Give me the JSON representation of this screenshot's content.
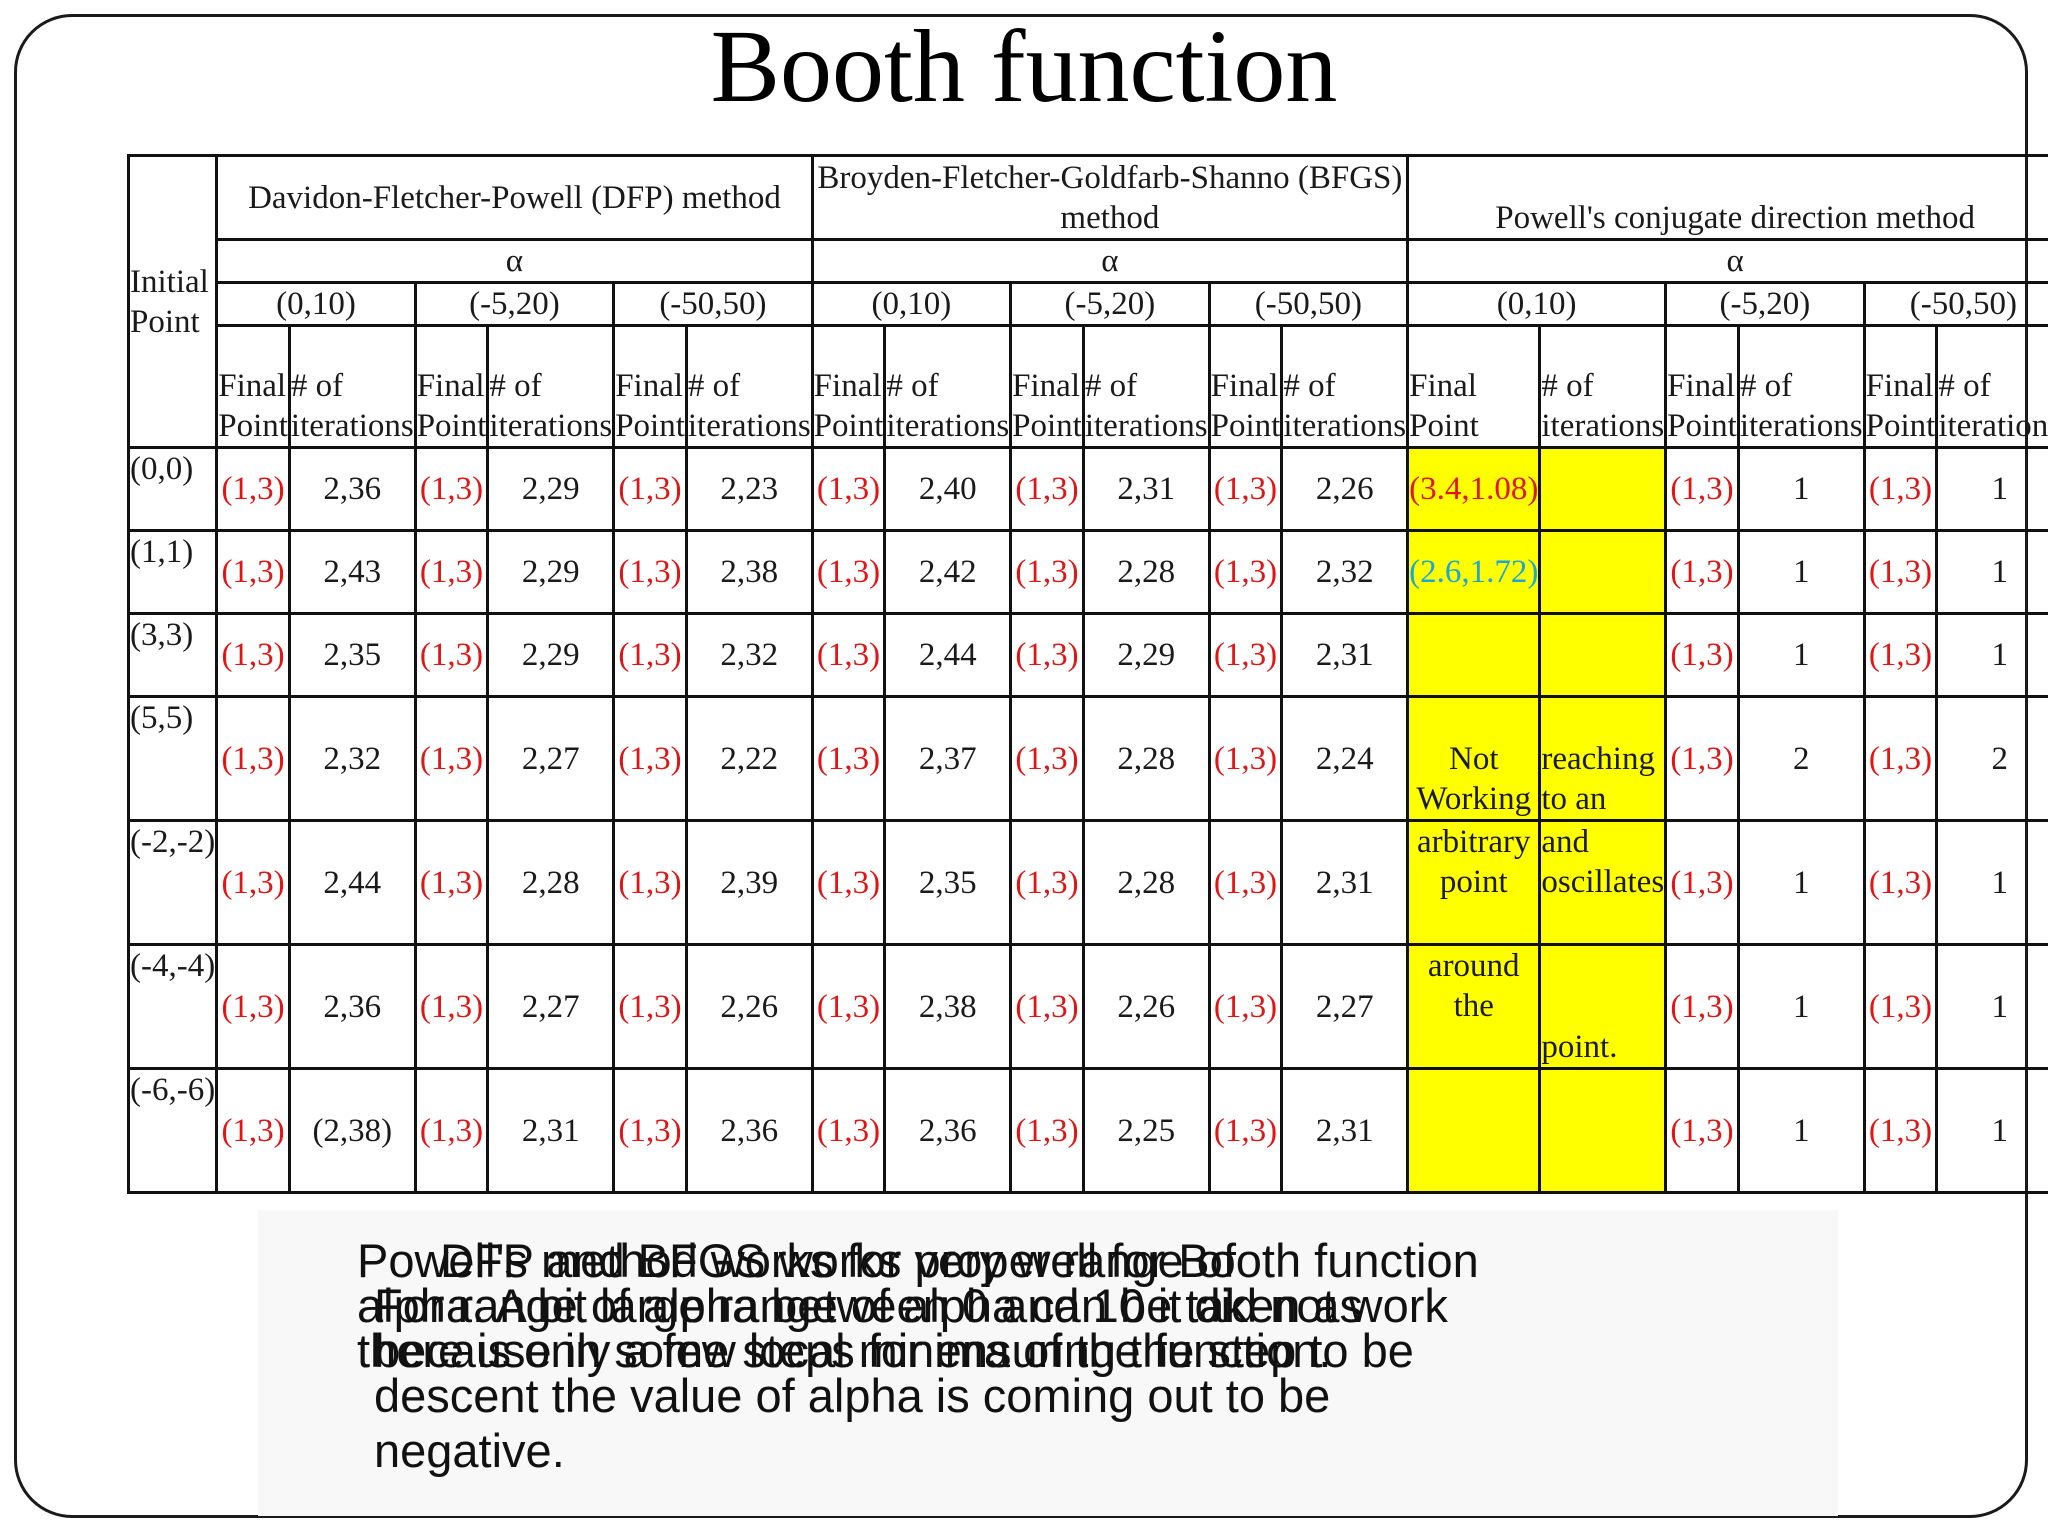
{
  "title": "Booth function",
  "table": {
    "initial_point_header": "Initial Point",
    "methods": [
      "Davidon-Fletcher-Powell (DFP) method",
      "Broyden-Fletcher-Goldfarb-Shanno (BFGS) method",
      "Powell's conjugate direction method"
    ],
    "alpha_label": "α",
    "alpha_ranges": [
      "(0,10)",
      "(-5,20)",
      "(-50,50)"
    ],
    "col_final_point": "Final Point",
    "col_iterations": "# of iterations",
    "rows": [
      {
        "point": "(0,0)",
        "cells": [
          "(1,3)",
          "2,36",
          "(1,3)",
          "2,29",
          "(1,3)",
          "2,23",
          "(1,3)",
          "2,40",
          "(1,3)",
          "2,31",
          "(1,3)",
          "2,26",
          "(3.4,1.08)",
          "",
          "(1,3)",
          "1",
          "(1,3)",
          "1"
        ]
      },
      {
        "point": "(1,1)",
        "cells": [
          "(1,3)",
          "2,43",
          "(1,3)",
          "2,29",
          "(1,3)",
          "2,38",
          "(1,3)",
          "2,42",
          "(1,3)",
          "2,28",
          "(1,3)",
          "2,32",
          "(2.6,1.72)",
          "",
          "(1,3)",
          "1",
          "(1,3)",
          "1"
        ]
      },
      {
        "point": "(3,3)",
        "cells": [
          "(1,3)",
          "2,35",
          "(1,3)",
          "2,29",
          "(1,3)",
          "2,32",
          "(1,3)",
          "2,44",
          "(1,3)",
          "2,29",
          "(1,3)",
          "2,31",
          "",
          "",
          "(1,3)",
          "1",
          "(1,3)",
          "1"
        ]
      },
      {
        "point": "(5,5)",
        "cells": [
          "(1,3)",
          "2,32",
          "(1,3)",
          "2,27",
          "(1,3)",
          "2,22",
          "(1,3)",
          "2,37",
          "(1,3)",
          "2,28",
          "(1,3)",
          "2,24",
          "Not Working",
          "reaching to an",
          "(1,3)",
          "2",
          "(1,3)",
          "2"
        ]
      },
      {
        "point": "(-2,-2)",
        "cells": [
          "(1,3)",
          "2,44",
          "(1,3)",
          "2,28",
          "(1,3)",
          "2,39",
          "(1,3)",
          "2,35",
          "(1,3)",
          "2,28",
          "(1,3)",
          "2,31",
          "arbitrary point",
          "and oscillates",
          "(1,3)",
          "1",
          "(1,3)",
          "1"
        ]
      },
      {
        "point": "(-4,-4)",
        "cells": [
          "(1,3)",
          "2,36",
          "(1,3)",
          "2,27",
          "(1,3)",
          "2,26",
          "(1,3)",
          "2,38",
          "(1,3)",
          "2,26",
          "(1,3)",
          "2,27",
          "around the",
          "point.",
          "(1,3)",
          "1",
          "(1,3)",
          "1"
        ]
      },
      {
        "point": "(-6,-6)",
        "cells": [
          "(1,3)",
          "(2,38)",
          "(1,3)",
          "2,31",
          "(1,3)",
          "2,36",
          "(1,3)",
          "2,36",
          "(1,3)",
          "2,25",
          "(1,3)",
          "2,31",
          "",
          "",
          "(1,3)",
          "1",
          "(1,3)",
          "1"
        ]
      }
    ],
    "colors": {
      "final_point": "#e01515",
      "highlight": "#ffff00",
      "alt_point": "#1aa7d8"
    }
  },
  "footer": {
    "text_1": "DFP and BFGS works very well for Booth function alpha. A bit large range of alpha can be taken as there is only a few local minima of the function.",
    "text_2": "Powell's method works for proper range of For range of alpha between 0 and 10 it did not work because in some steps for ensuring the step to be descent the value of alpha is coming out to be negative."
  }
}
